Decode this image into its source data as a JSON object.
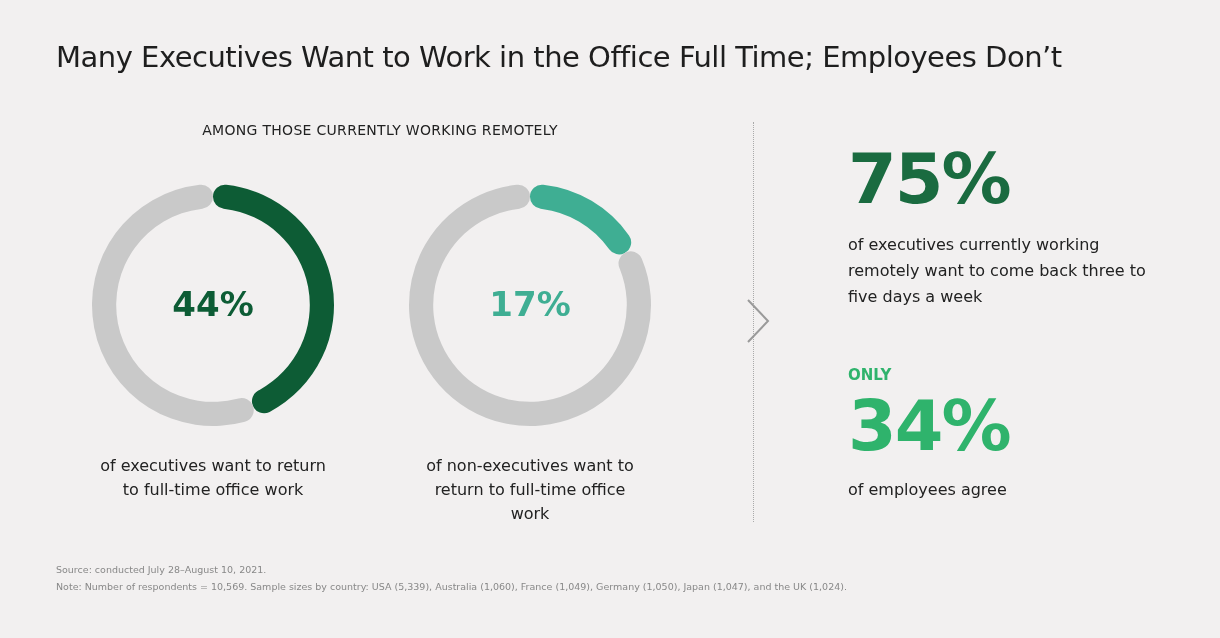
{
  "chart_data": [
    {
      "type": "donut",
      "title": "Many Executives Want to Work in the Office Full Time; Employees Don’t",
      "subtitle": "AMONG THOSE CURRENTLY WORKING REMOTELY",
      "categories": [
        null,
        null
      ],
      "values": [
        44,
        56
      ],
      "colors": [
        "#0d5c35",
        "#c9c9c9"
      ],
      "value_labels": [
        "44%",
        null
      ],
      "annotations": [
        "of executives want to return to full-time office work"
      ],
      "legend": false
    },
    {
      "type": "donut",
      "categories": [
        null,
        null
      ],
      "values": [
        17,
        83
      ],
      "colors": [
        "#3fae93",
        "#c9c9c9"
      ],
      "value_labels": [
        "17%",
        null
      ],
      "annotations": [
        "of non-executives want to return to full-time office work"
      ],
      "legend": false
    },
    {
      "type": "other",
      "annotations": [
        "75%",
        "of executives currently working remotely want to come back three to five days a week",
        "ONLY",
        "34%",
        "of employees agree",
        "Source: conducted July 28–August 10, 2021.",
        "Note: Number of respondents = 10,569. Sample sizes by country: USA (5,339), Australia (1,060), France (1,049), Germany (1,050), Japan (1,047), and the UK (1,024)."
      ]
    }
  ]
}
